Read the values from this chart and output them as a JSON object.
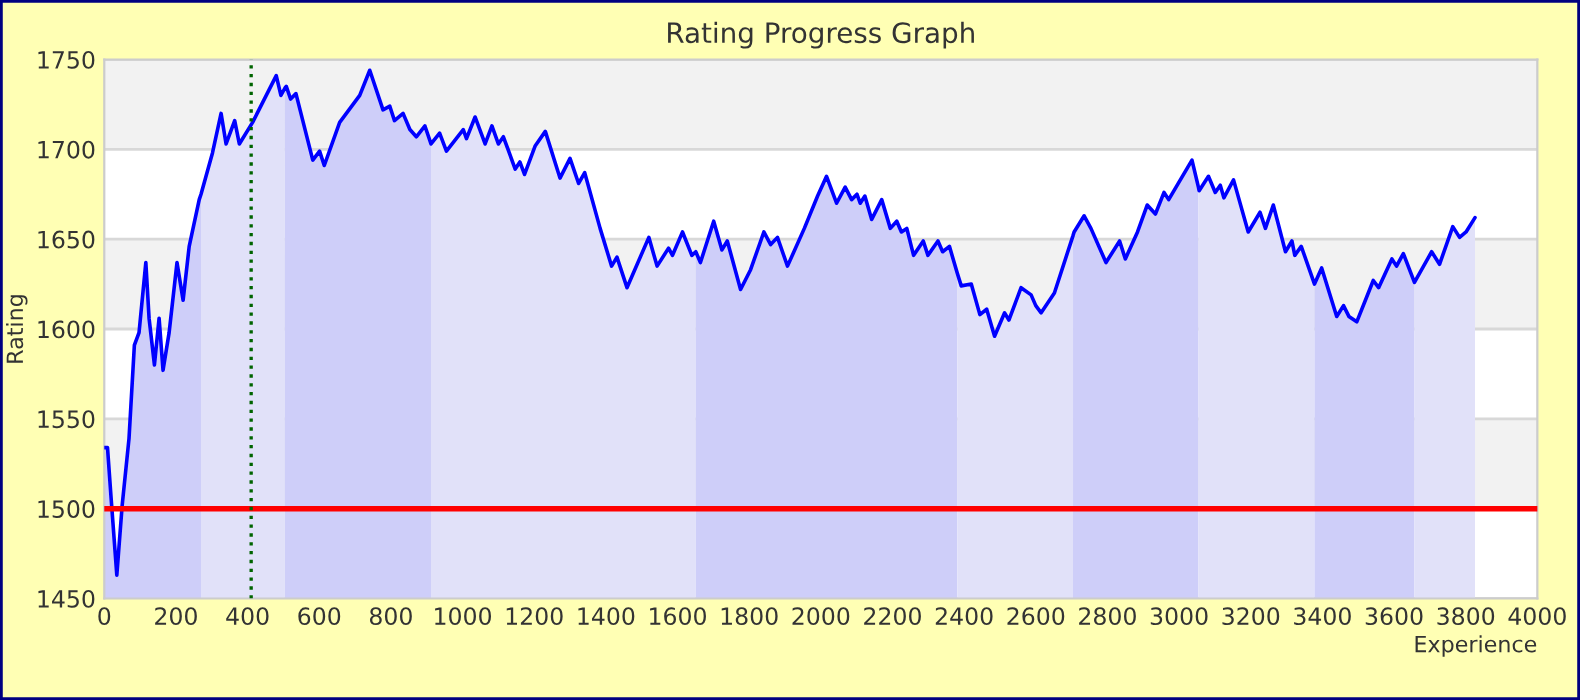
{
  "chart_data": {
    "type": "line",
    "title": "Rating Progress Graph",
    "xlabel": "Experience",
    "ylabel": "Rating",
    "xlim": [
      0,
      4000
    ],
    "xticks": [
      0,
      200,
      400,
      600,
      800,
      1000,
      1200,
      1400,
      1600,
      1800,
      2000,
      2200,
      2400,
      2600,
      2800,
      3000,
      3200,
      3400,
      3600,
      3800,
      4000
    ],
    "ylim": [
      1450,
      1750
    ],
    "yticks": [
      1450,
      1500,
      1550,
      1600,
      1650,
      1700,
      1750
    ],
    "grid": "y",
    "legend": false,
    "marker": "none",
    "line_style": "solid",
    "series": [
      {
        "type": "area",
        "color": "#cecef9",
        "x": [
          0,
          9,
          19,
          35,
          50,
          69,
          84,
          97,
          116,
          125,
          140,
          153,
          164,
          181,
          203,
          220,
          237,
          265,
          270
        ],
        "values": [
          1534,
          1534,
          1506,
          1463,
          1502,
          1539,
          1591,
          1598,
          1637,
          1606,
          1580,
          1606,
          1577,
          1598,
          1637,
          1616,
          1646,
          1672,
          1675
        ]
      },
      {
        "type": "area",
        "color": "#e1e1f9",
        "x": [
          270,
          302,
          326,
          340,
          364,
          377,
          414,
          480,
          493,
          504
        ],
        "values": [
          1675,
          1698,
          1720,
          1703,
          1716,
          1703,
          1715,
          1741,
          1730,
          1734
        ]
      },
      {
        "type": "area",
        "color": "#cecef9",
        "x": [
          504,
          508,
          520,
          535,
          582,
          601,
          614,
          657,
          713,
          741,
          778,
          797,
          810,
          834,
          853,
          871,
          895,
          912
        ],
        "values": [
          1734,
          1735,
          1728,
          1731,
          1694,
          1699,
          1691,
          1715,
          1730,
          1744,
          1722,
          1724,
          1716,
          1720,
          1711,
          1707,
          1713,
          1703
        ]
      },
      {
        "type": "area",
        "color": "#e1e1f9",
        "x": [
          912,
          936,
          955,
          1002,
          1011,
          1035,
          1063,
          1082,
          1100,
          1114,
          1147,
          1160,
          1173,
          1203,
          1231,
          1272,
          1300,
          1324,
          1341,
          1384,
          1416,
          1431,
          1459,
          1520,
          1543,
          1575,
          1586,
          1614,
          1640,
          1651
        ],
        "values": [
          1703,
          1709,
          1699,
          1711,
          1706,
          1718,
          1703,
          1713,
          1703,
          1707,
          1689,
          1693,
          1686,
          1702,
          1710,
          1684,
          1695,
          1681,
          1687,
          1656,
          1635,
          1640,
          1623,
          1651,
          1635,
          1645,
          1641,
          1654,
          1641,
          1643
        ]
      },
      {
        "type": "area",
        "color": "#cecef9",
        "x": [
          1651,
          1664,
          1701,
          1724,
          1739,
          1776,
          1804,
          1841,
          1860,
          1879,
          1907,
          1954,
          1991,
          2016,
          2044,
          2068,
          2086,
          2101,
          2110,
          2123,
          2142,
          2170,
          2194,
          2212,
          2225,
          2240,
          2259,
          2286,
          2299,
          2327,
          2340,
          2359,
          2381
        ],
        "values": [
          1643,
          1637,
          1660,
          1644,
          1649,
          1622,
          1633,
          1654,
          1647,
          1651,
          1635,
          1656,
          1674,
          1685,
          1670,
          1679,
          1672,
          1675,
          1670,
          1674,
          1661,
          1672,
          1656,
          1660,
          1654,
          1656,
          1641,
          1649,
          1641,
          1649,
          1643,
          1646,
          1631
        ]
      },
      {
        "type": "area",
        "color": "#e1e1f9",
        "x": [
          2381,
          2392,
          2420,
          2444,
          2463,
          2485,
          2513,
          2525,
          2559,
          2587,
          2600,
          2615,
          2652,
          2704
        ],
        "values": [
          1631,
          1624,
          1625,
          1608,
          1611,
          1596,
          1609,
          1605,
          1623,
          1619,
          1613,
          1609,
          1620,
          1652
        ]
      },
      {
        "type": "area",
        "color": "#cecef9",
        "x": [
          2704,
          2707,
          2735,
          2754,
          2796,
          2834,
          2850,
          2884,
          2911,
          2934,
          2958,
          2971,
          3036,
          3054
        ],
        "values": [
          1652,
          1654,
          1663,
          1656,
          1637,
          1649,
          1639,
          1654,
          1669,
          1664,
          1676,
          1672,
          1694,
          1679
        ]
      },
      {
        "type": "area",
        "color": "#e1e1f9",
        "x": [
          3054,
          3056,
          3082,
          3101,
          3115,
          3125,
          3152,
          3193,
          3226,
          3241,
          3263,
          3297,
          3315,
          3323,
          3341,
          3378
        ],
        "values": [
          1679,
          1677,
          1685,
          1676,
          1680,
          1673,
          1683,
          1654,
          1665,
          1656,
          1669,
          1643,
          1649,
          1641,
          1646,
          1625
        ]
      },
      {
        "type": "area",
        "color": "#cecef9",
        "x": [
          3378,
          3398,
          3440,
          3459,
          3474,
          3496,
          3542,
          3557,
          3594,
          3607,
          3626,
          3657
        ],
        "values": [
          1625,
          1634,
          1607,
          1613,
          1607,
          1604,
          1627,
          1623,
          1639,
          1635,
          1642,
          1626
        ]
      },
      {
        "type": "area",
        "color": "#e1e1f9",
        "x": [
          3657,
          3705,
          3727,
          3764,
          3783,
          3801,
          3826
        ],
        "values": [
          1626,
          1643,
          1636,
          1657,
          1651,
          1654,
          1662
        ]
      },
      {
        "color": "#0000ff",
        "x": [
          0,
          9,
          19,
          35,
          50,
          69,
          84,
          97,
          116,
          125,
          140,
          153,
          164,
          181,
          203,
          220,
          237,
          265,
          270,
          302,
          326,
          340,
          364,
          377,
          414,
          480,
          493,
          504,
          508,
          520,
          535,
          582,
          601,
          614,
          657,
          713,
          741,
          778,
          797,
          810,
          834,
          853,
          871,
          895,
          912,
          936,
          955,
          1002,
          1011,
          1035,
          1063,
          1082,
          1100,
          1114,
          1147,
          1160,
          1173,
          1203,
          1231,
          1272,
          1300,
          1324,
          1341,
          1384,
          1416,
          1431,
          1459,
          1520,
          1543,
          1575,
          1586,
          1614,
          1640,
          1651,
          1664,
          1701,
          1724,
          1739,
          1776,
          1804,
          1841,
          1860,
          1879,
          1907,
          1954,
          1991,
          2016,
          2044,
          2068,
          2086,
          2101,
          2110,
          2123,
          2142,
          2170,
          2194,
          2212,
          2225,
          2240,
          2259,
          2286,
          2299,
          2327,
          2340,
          2359,
          2381,
          2392,
          2420,
          2444,
          2463,
          2485,
          2513,
          2525,
          2559,
          2587,
          2600,
          2615,
          2652,
          2704,
          2707,
          2735,
          2754,
          2796,
          2834,
          2850,
          2884,
          2911,
          2934,
          2958,
          2971,
          3036,
          3054,
          3056,
          3082,
          3101,
          3115,
          3125,
          3152,
          3193,
          3226,
          3241,
          3263,
          3297,
          3315,
          3323,
          3341,
          3378,
          3398,
          3440,
          3459,
          3474,
          3496,
          3542,
          3557,
          3594,
          3607,
          3626,
          3657,
          3705,
          3727,
          3764,
          3783,
          3801,
          3826
        ],
        "values": [
          1534,
          1534,
          1506,
          1463,
          1502,
          1539,
          1591,
          1598,
          1637,
          1606,
          1580,
          1606,
          1577,
          1598,
          1637,
          1616,
          1646,
          1672,
          1675,
          1698,
          1720,
          1703,
          1716,
          1703,
          1715,
          1741,
          1730,
          1734,
          1735,
          1728,
          1731,
          1694,
          1699,
          1691,
          1715,
          1730,
          1744,
          1722,
          1724,
          1716,
          1720,
          1711,
          1707,
          1713,
          1703,
          1709,
          1699,
          1711,
          1706,
          1718,
          1703,
          1713,
          1703,
          1707,
          1689,
          1693,
          1686,
          1702,
          1710,
          1684,
          1695,
          1681,
          1687,
          1656,
          1635,
          1640,
          1623,
          1651,
          1635,
          1645,
          1641,
          1654,
          1641,
          1643,
          1637,
          1660,
          1644,
          1649,
          1622,
          1633,
          1654,
          1647,
          1651,
          1635,
          1656,
          1674,
          1685,
          1670,
          1679,
          1672,
          1675,
          1670,
          1674,
          1661,
          1672,
          1656,
          1660,
          1654,
          1656,
          1641,
          1649,
          1641,
          1649,
          1643,
          1646,
          1631,
          1624,
          1625,
          1608,
          1611,
          1596,
          1609,
          1605,
          1623,
          1619,
          1613,
          1609,
          1620,
          1652,
          1654,
          1663,
          1656,
          1637,
          1649,
          1639,
          1654,
          1669,
          1664,
          1676,
          1672,
          1694,
          1679,
          1677,
          1685,
          1676,
          1680,
          1673,
          1683,
          1654,
          1665,
          1656,
          1669,
          1643,
          1649,
          1641,
          1646,
          1625,
          1634,
          1607,
          1613,
          1607,
          1604,
          1627,
          1623,
          1639,
          1635,
          1642,
          1626,
          1643,
          1636,
          1657,
          1651,
          1654,
          1662
        ]
      }
    ],
    "ref_lines": [
      {
        "axis": "y",
        "value": 1500,
        "color": "#ff0000",
        "line_style": "solid"
      },
      {
        "axis": "x",
        "value": 410,
        "color": "#006400",
        "line_style": "dotted"
      }
    ],
    "bands": [
      {
        "axis": "y",
        "from": 1700,
        "to": 1750,
        "color": "#f2f2f2"
      },
      {
        "axis": "y",
        "from": 1600,
        "to": 1650,
        "color": "#f2f2f2"
      },
      {
        "axis": "y",
        "from": 1500,
        "to": 1550,
        "color": "#f2f2f2"
      }
    ]
  }
}
